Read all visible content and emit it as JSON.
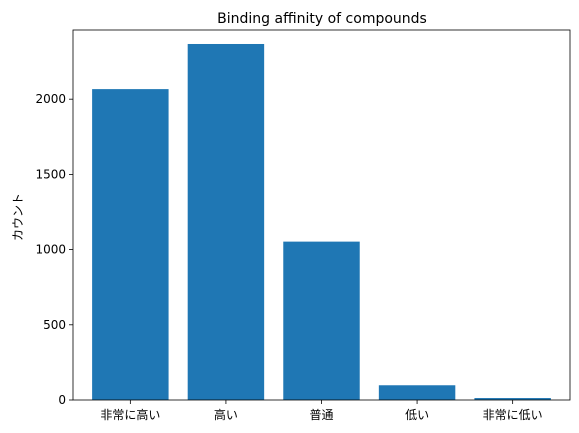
{
  "chart_data": {
    "type": "bar",
    "title": "Binding affinity of compounds",
    "xlabel": "",
    "ylabel": "カウント",
    "categories": [
      "非常に高い",
      "高い",
      "普通",
      "低い",
      "非常に低い"
    ],
    "values": [
      2067,
      2367,
      1053,
      98,
      13
    ],
    "ylim": [
      0,
      2460
    ],
    "yticks": [
      0,
      500,
      1000,
      1500,
      2000
    ],
    "bar_color": "#1f77b4",
    "grid": false,
    "legend": "none"
  }
}
